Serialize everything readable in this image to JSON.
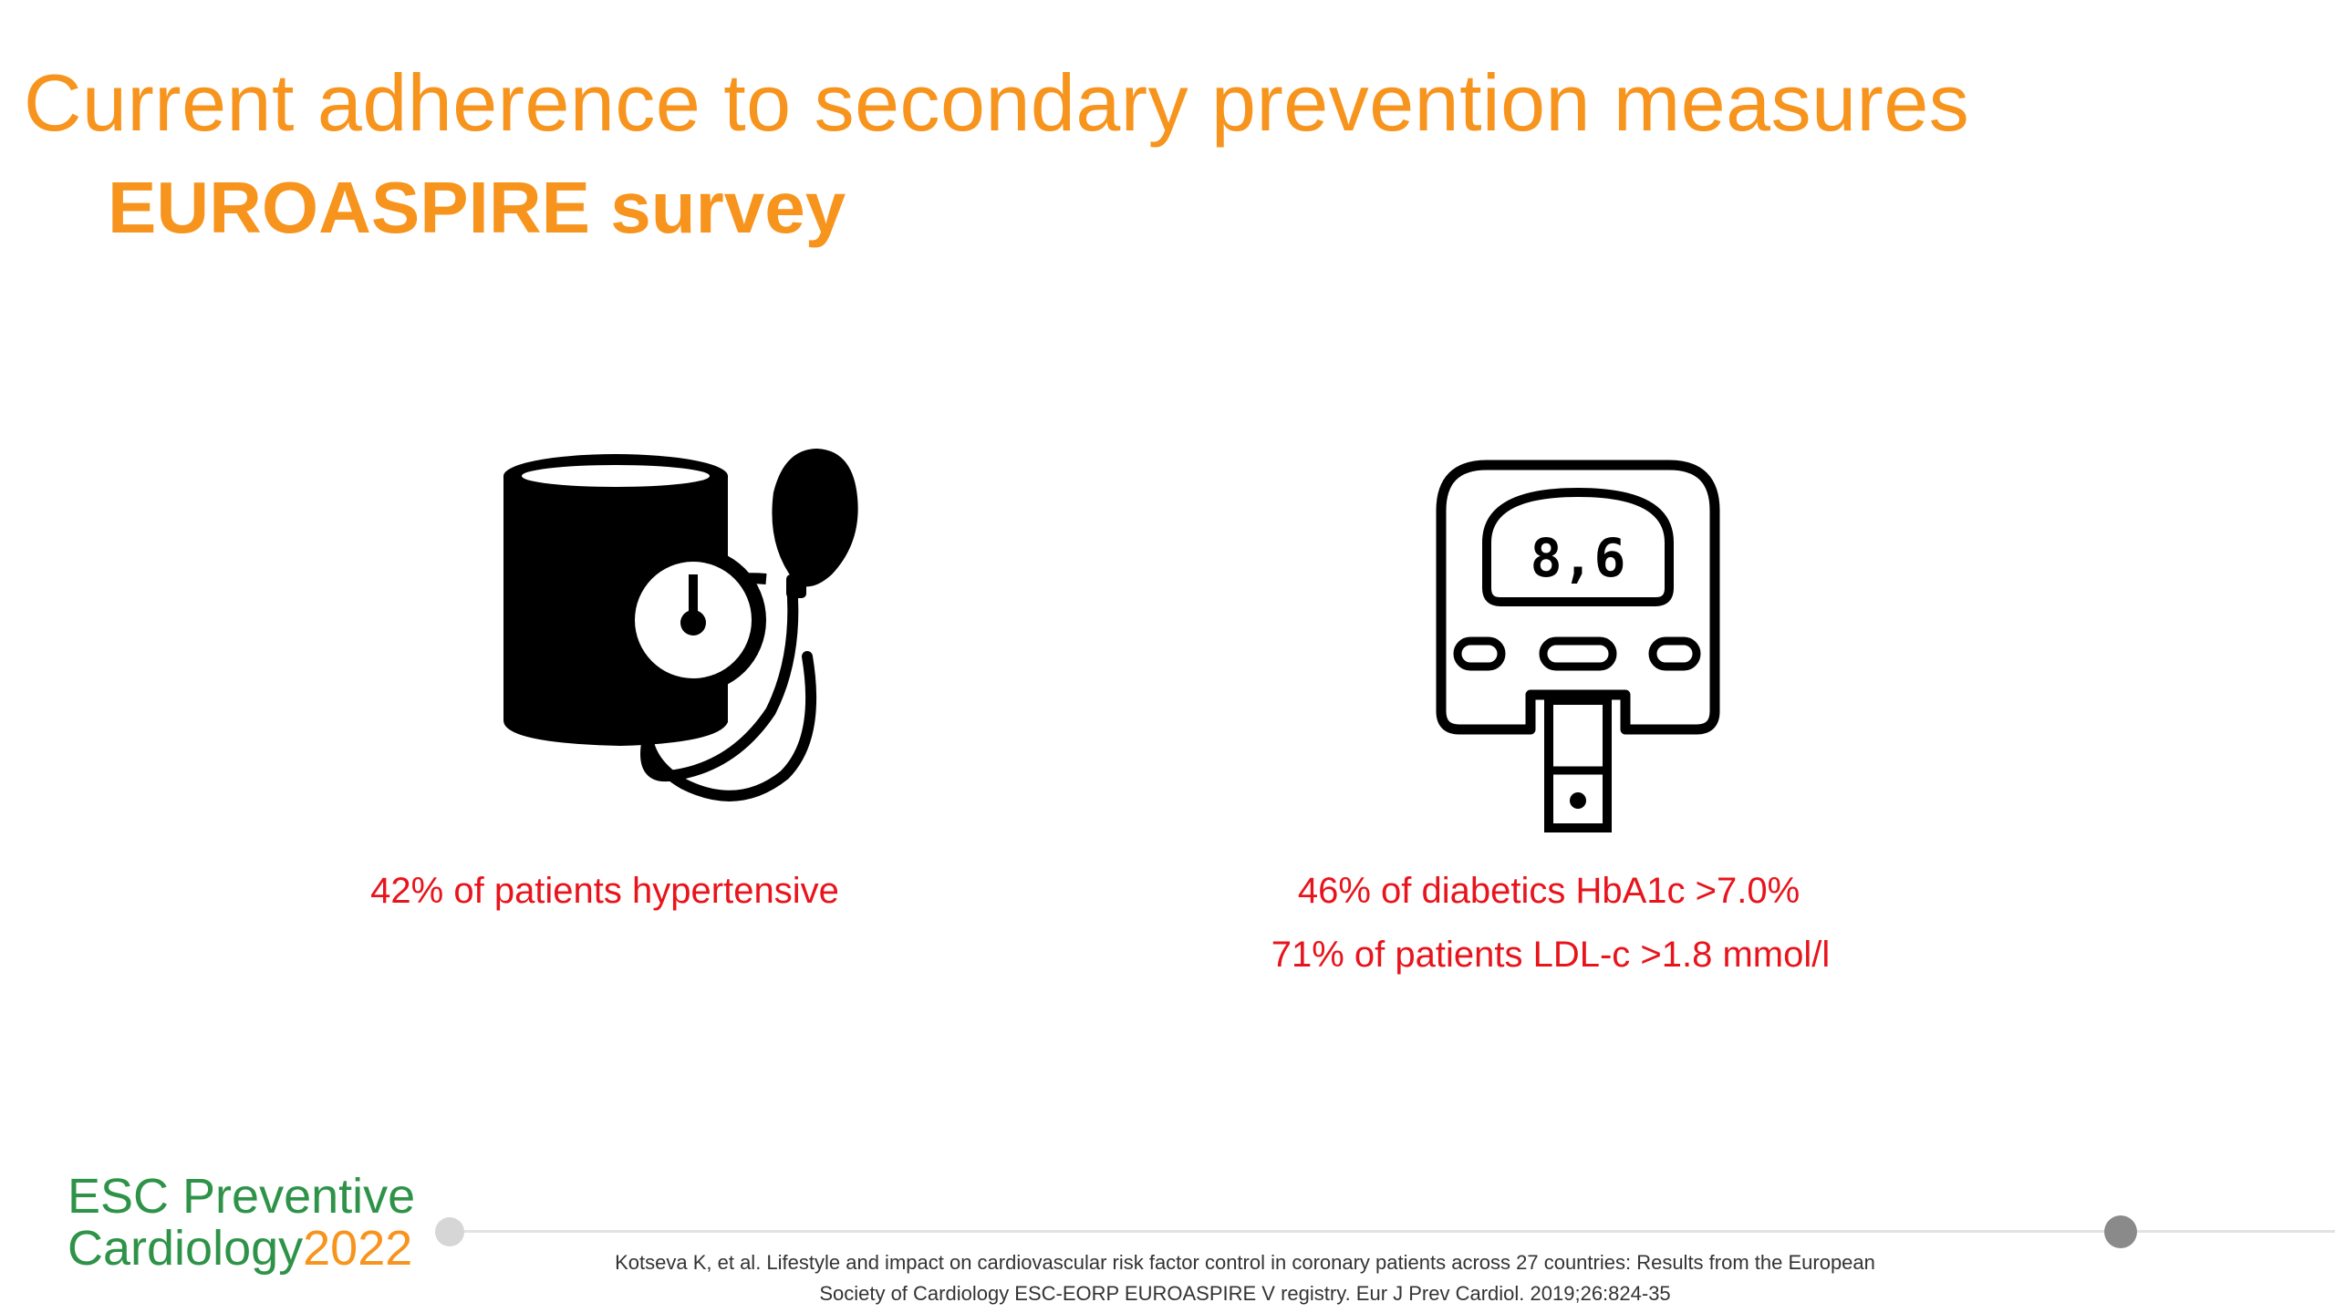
{
  "slide": {
    "title": "Current adherence to secondary prevention measures",
    "subtitle": "EUROASPIRE survey"
  },
  "left_panel": {
    "icon": "blood-pressure-monitor-icon",
    "stat": "42% of patients hypertensive"
  },
  "right_panel": {
    "icon": "glucometer-icon",
    "display_reading": "8,6",
    "stats": [
      "46% of diabetics HbA1c >7.0%",
      "71% of patients LDL-c >1.8 mmol/l"
    ]
  },
  "footer": {
    "brand_line1": "ESC Preventive",
    "brand_line2": "Cardiology",
    "brand_year": "2022",
    "citation_line1": "Kotseva K, et al. Lifestyle and impact on cardiovascular risk factor control in coronary patients across 27 countries: Results from the European",
    "citation_line2": "Society of Cardiology ESC-EORP EUROASPIRE V registry. Eur J Prev Cardiol. 2019;26:824-35"
  },
  "colors": {
    "title": "#f7941d",
    "stat": "#e8141c",
    "brand_green": "#2e9348",
    "brand_orange": "#f7941d"
  }
}
